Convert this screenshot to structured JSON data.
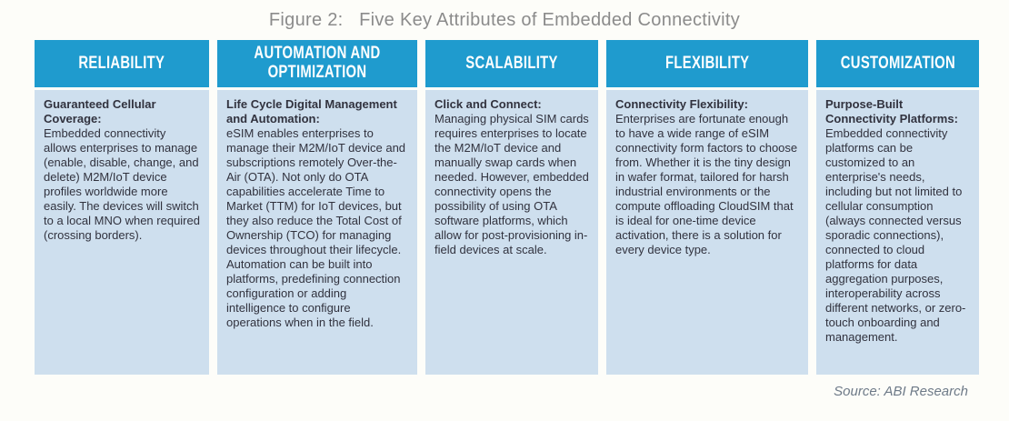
{
  "title": "Figure 2:   Five Key Attributes of Embedded Connectivity",
  "source": "Source: ABI Research",
  "colors": {
    "header_blue": "#1F9BCE",
    "body_bg": "#CEDFEE",
    "text_dark": "#31323E",
    "title_gray": "#8B8B8B",
    "source_gray": "#6E7A88",
    "page_bg": "#FDFDF9"
  },
  "columns": [
    {
      "header": "RELIABILITY",
      "lead": "Guaranteed Cellular Coverage:",
      "body": "Embedded connectivity allows enterprises to manage (enable, disable, change, and delete) M2M/IoT device profiles worldwide more easily. The devices will switch to a local MNO when required (crossing borders)."
    },
    {
      "header": "AUTOMATION AND OPTIMIZATION",
      "lead": "Life Cycle Digital Management and Automation:",
      "body": "eSIM enables enterprises to manage their M2M/IoT device and subscriptions remotely Over-the-Air (OTA). Not only do OTA capabilities accelerate Time to Market (TTM) for IoT devices, but they also reduce the Total Cost of Ownership (TCO) for managing devices throughout their lifecycle. Automation can be built into platforms, predefining connection configuration or adding intelligence to configure operations when in the field."
    },
    {
      "header": "SCALABILITY",
      "lead": "Click and Connect:",
      "body": "Managing physical SIM cards requires enterprises to locate the M2M/IoT device and manually swap cards when needed. However, embedded connectivity opens the possibility of using OTA software platforms, which allow for post-provisioning in-field devices at scale."
    },
    {
      "header": "FLEXIBILITY",
      "lead": "Connectivity Flexibility:",
      "body": "Enterprises are fortunate enough to have a wide range of eSIM connectivity form factors to choose from. Whether it is the tiny design in wafer format, tailored for harsh industrial environments or the compute offloading CloudSIM that is ideal for one-time device activation, there is a solution for every device type."
    },
    {
      "header": "CUSTOMIZATION",
      "lead": "Purpose-Built Connectivity Platforms:",
      "body": "Embedded connectivity platforms can be customized to an enterprise's needs, including but not limited to cellular consumption (always connected versus sporadic connections), connected to cloud platforms for data aggregation purposes, interoperability across different networks, or zero-touch onboarding and management."
    }
  ]
}
